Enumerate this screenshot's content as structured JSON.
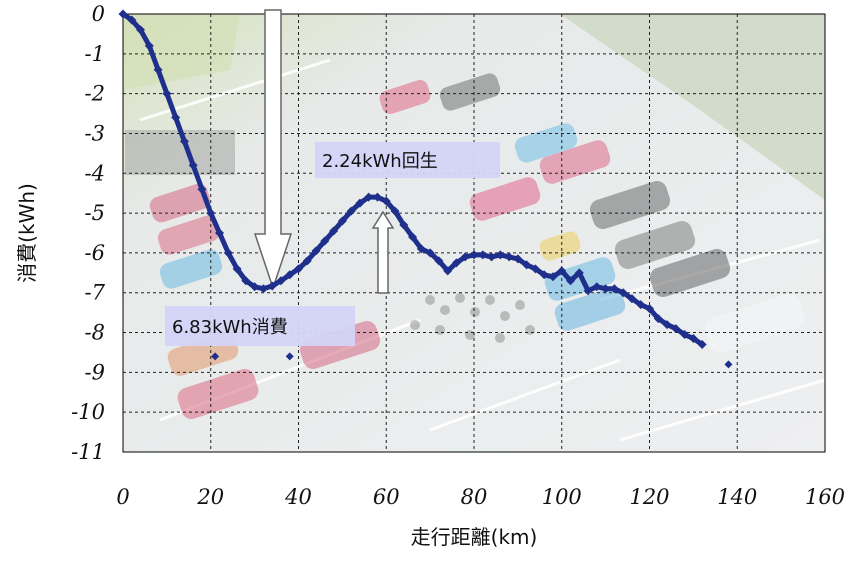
{
  "chart_data": {
    "type": "scatter",
    "title": "",
    "xlabel": "走行距離(km)",
    "ylabel": "消費(kWh)",
    "xlim": [
      0,
      160
    ],
    "ylim": [
      -11,
      0
    ],
    "x_ticks": [
      "0",
      "20",
      "40",
      "60",
      "80",
      "100",
      "120",
      "140",
      "160"
    ],
    "y_ticks": [
      "0",
      "-1",
      "-2",
      "-3",
      "-4",
      "-5",
      "-6",
      "-7",
      "-8",
      "-9",
      "-10",
      "-11"
    ],
    "grid": true,
    "background": "aerial photo of a parking lot with cars and a group of people",
    "marker_color": "#1f2f8c",
    "series": [
      {
        "x": [
          0,
          2,
          4,
          6,
          8,
          10,
          12,
          14,
          16,
          18,
          20,
          22,
          24,
          26,
          28,
          30,
          32,
          34,
          36,
          38,
          40,
          42,
          44,
          46,
          48,
          50,
          52,
          54,
          56,
          58,
          60,
          62,
          64,
          66,
          68,
          70,
          72,
          74,
          76,
          78,
          80,
          82,
          84,
          86,
          88,
          90,
          92,
          94,
          96,
          98,
          100,
          102,
          104,
          106,
          108,
          110,
          112,
          114,
          116,
          118,
          120,
          122,
          124,
          126,
          128,
          130,
          132
        ],
        "y": [
          0,
          -0.15,
          -0.4,
          -0.8,
          -1.4,
          -2.0,
          -2.6,
          -3.2,
          -3.8,
          -4.4,
          -5.0,
          -5.5,
          -6.0,
          -6.4,
          -6.7,
          -6.85,
          -6.9,
          -6.83,
          -6.7,
          -6.55,
          -6.4,
          -6.2,
          -5.95,
          -5.7,
          -5.45,
          -5.2,
          -4.95,
          -4.75,
          -4.6,
          -4.6,
          -4.7,
          -4.95,
          -5.3,
          -5.6,
          -5.9,
          -6.0,
          -6.2,
          -6.45,
          -6.25,
          -6.1,
          -6.05,
          -6.05,
          -6.1,
          -6.05,
          -6.1,
          -6.15,
          -6.3,
          -6.4,
          -6.55,
          -6.6,
          -6.45,
          -6.7,
          -6.5,
          -6.95,
          -6.85,
          -6.9,
          -6.9,
          -7.0,
          -7.15,
          -7.3,
          -7.4,
          -7.65,
          -7.8,
          -7.9,
          -8.05,
          -8.15,
          -8.3
        ]
      },
      {
        "x": [
          21,
          38,
          138
        ],
        "y": [
          -8.6,
          -8.6,
          -8.8
        ]
      }
    ],
    "annotations": [
      {
        "text": "2.24kWh回生",
        "target": {
          "x": 59,
          "y": -4.6
        }
      },
      {
        "text": "6.83kWh消費",
        "target": {
          "x": 33,
          "y": -6.9
        }
      }
    ]
  }
}
